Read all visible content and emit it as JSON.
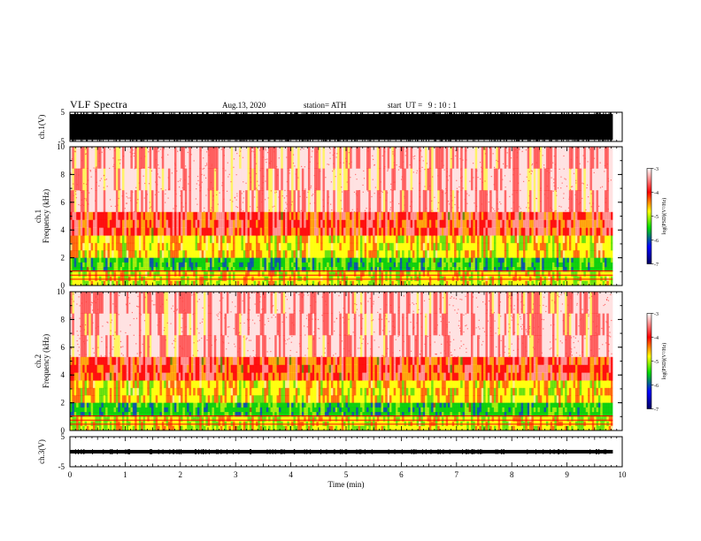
{
  "header": {
    "title": "VLF Spectra",
    "date": "Aug.13, 2020",
    "station": "station= ATH",
    "start": "start  UT =   9 : 10 : 1"
  },
  "colors": {
    "spec_low": "#000080",
    "spec_blue": "#0000ff",
    "spec_green": "#00cc00",
    "spec_yellow": "#ffff00",
    "spec_red": "#ff0000",
    "spec_pale": "#ffe0e0",
    "background": "#ffffff",
    "waveform": "#000000"
  },
  "chart_data": [
    {
      "type": "line",
      "ylabel": "ch.1(V)",
      "ylim": [
        -5,
        5
      ],
      "yticks": [
        "5",
        "-5"
      ],
      "xlim": [
        0,
        10
      ],
      "description_visible": "dense black waveform",
      "amplitude_range": [
        -4.5,
        5
      ]
    },
    {
      "type": "heatmap",
      "ylabel": "ch.1\nFrequency (kHz)",
      "ylabel_lines": [
        "ch.1",
        "Frequency  (kHz)"
      ],
      "ylim": [
        0,
        10
      ],
      "yticks": [
        "10",
        "8",
        "6",
        "4",
        "2",
        "0"
      ],
      "xlim": [
        0,
        10
      ],
      "data_end_min": 9.83,
      "colorbar": {
        "label": "log(PSD)(V²/Hz)",
        "range": [
          -7,
          -3
        ],
        "ticks": [
          "-3",
          "-4",
          "-5",
          "-6",
          "-7"
        ]
      },
      "bands_khz": [
        {
          "from": 5.3,
          "to": 10.0,
          "level": -3.3
        },
        {
          "from": 3.6,
          "to": 5.3,
          "level": -3.6
        },
        {
          "from": 2.0,
          "to": 3.6,
          "level": -4.1
        },
        {
          "from": 1.0,
          "to": 2.0,
          "level": -4.9
        },
        {
          "from": 0.0,
          "to": 1.0,
          "level": -4.3
        }
      ]
    },
    {
      "type": "heatmap",
      "ylabel_lines": [
        "ch.2",
        "Frequency  (kHz)"
      ],
      "ylim": [
        0,
        10
      ],
      "yticks": [
        "10",
        "8",
        "6",
        "4",
        "2",
        "0"
      ],
      "xlim": [
        0,
        10
      ],
      "data_end_min": 9.83,
      "colorbar": {
        "label": "log(PSD)(V²/Hz)",
        "range": [
          -7,
          -3
        ],
        "ticks": [
          "-3",
          "-4",
          "-5",
          "-6",
          "-7"
        ]
      },
      "bands_khz": [
        {
          "from": 5.3,
          "to": 10.0,
          "level": -3.3
        },
        {
          "from": 3.6,
          "to": 5.3,
          "level": -3.7
        },
        {
          "from": 2.0,
          "to": 3.6,
          "level": -4.1
        },
        {
          "from": 1.0,
          "to": 2.0,
          "level": -4.9
        },
        {
          "from": 0.0,
          "to": 1.0,
          "level": -4.3
        }
      ]
    },
    {
      "type": "line",
      "ylabel": "ch.3(V)",
      "ylim": [
        -5,
        5
      ],
      "yticks": [
        "5",
        "-5"
      ],
      "xlim": [
        0,
        10
      ],
      "amplitude_range": [
        -0.6,
        0.6
      ],
      "xlabel": "Time  (min)",
      "xticks": [
        "0",
        "1",
        "2",
        "3",
        "4",
        "5",
        "6",
        "7",
        "8",
        "9",
        "10"
      ]
    }
  ]
}
